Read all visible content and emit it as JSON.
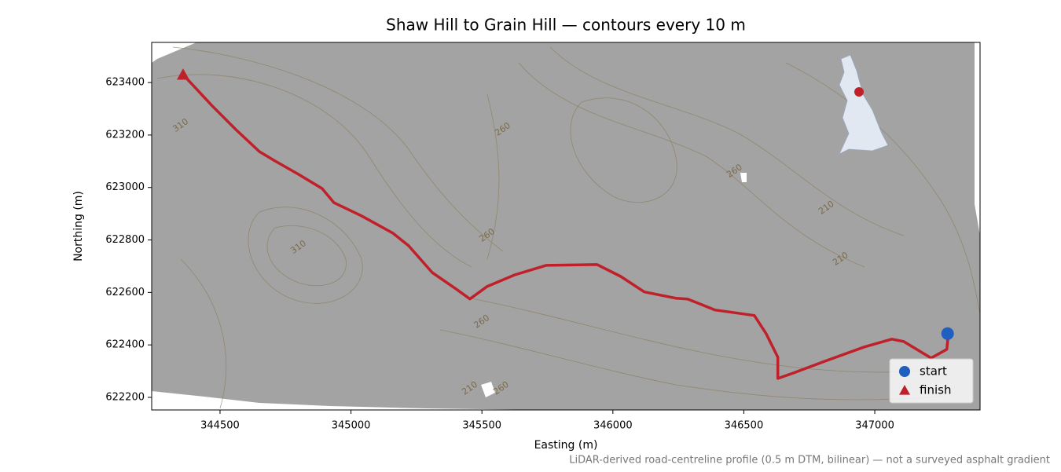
{
  "chart_data": {
    "type": "route-map",
    "title": "Shaw Hill to Grain Hill — contours every 10 m",
    "x_label": "Easting (m)",
    "y_label": "Northing (m)",
    "footnote": "LiDAR-derived road-centreline profile (0.5 m DTM, bilinear) — not a surveyed asphalt gradient",
    "xlim": [
      344239,
      347402
    ],
    "ylim": [
      622152,
      623553
    ],
    "xticks": [
      344500,
      345000,
      345500,
      346000,
      346500,
      347000
    ],
    "yticks": [
      622200,
      622400,
      622600,
      622800,
      623000,
      623200,
      623400
    ],
    "route": {
      "color": "#c0202a",
      "x": [
        344359,
        344470,
        344560,
        344650,
        344710,
        344800,
        344890,
        344935,
        345040,
        345160,
        345220,
        345310,
        345400,
        345454,
        345520,
        345625,
        345745,
        345940,
        346030,
        346120,
        346240,
        346285,
        346390,
        346540,
        346585,
        346630,
        346630,
        346690,
        346810,
        346960,
        347065,
        347110,
        347215,
        347275,
        347281
      ],
      "y": [
        623430,
        623311,
        623221,
        623137,
        623101,
        623050,
        622996,
        622942,
        622892,
        622826,
        622778,
        622676,
        622614,
        622575,
        622623,
        622667,
        622703,
        622706,
        622661,
        622602,
        622578,
        622575,
        622533,
        622512,
        622443,
        622353,
        622272,
        622293,
        622338,
        622392,
        622422,
        622413,
        622350,
        622383,
        622443
      ]
    },
    "markers": [
      {
        "name": "start",
        "color": "#1f5fbf",
        "marker": "circle",
        "x": [
          347278
        ],
        "y": [
          622443
        ]
      },
      {
        "name": "finish",
        "color": "#c0202a",
        "marker": "triangle",
        "x": [
          344359
        ],
        "y": [
          623430
        ]
      }
    ],
    "contour_labels": [
      {
        "text": "310",
        "x": 344350,
        "y": 623236
      },
      {
        "text": "260",
        "x": 345580,
        "y": 623221
      },
      {
        "text": "260",
        "x": 345520,
        "y": 622817
      },
      {
        "text": "310",
        "x": 344800,
        "y": 622772
      },
      {
        "text": "260",
        "x": 346465,
        "y": 623062
      },
      {
        "text": "210",
        "x": 346816,
        "y": 622922
      },
      {
        "text": "210",
        "x": 346870,
        "y": 622727
      },
      {
        "text": "260",
        "x": 345500,
        "y": 622488
      },
      {
        "text": "210",
        "x": 345454,
        "y": 622234
      },
      {
        "text": "260",
        "x": 345574,
        "y": 622234
      }
    ],
    "legend_position": "lower right"
  }
}
